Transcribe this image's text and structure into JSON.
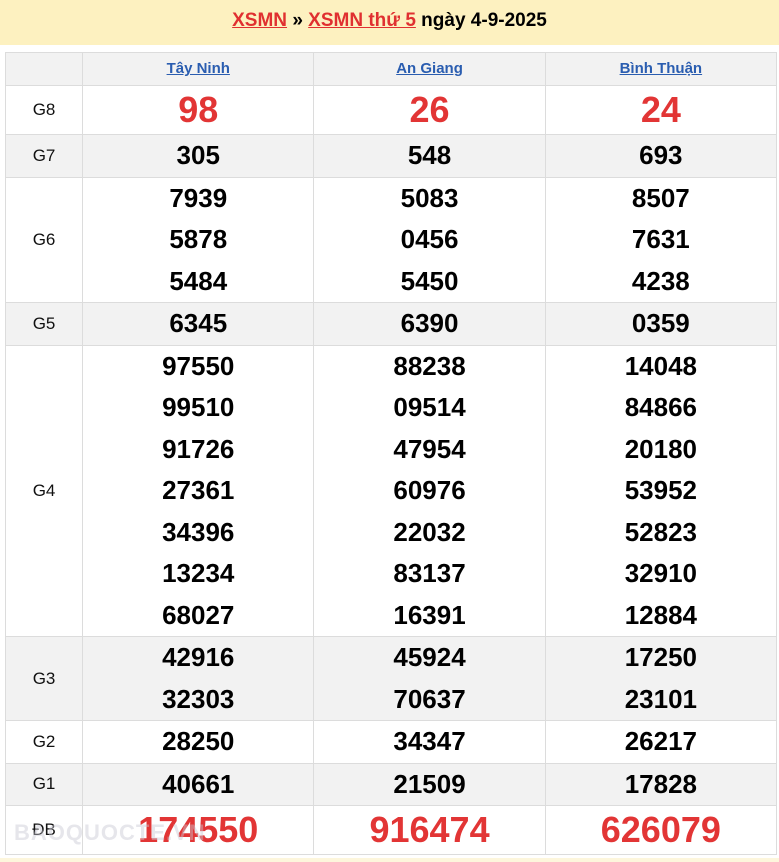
{
  "header": {
    "link1": "XSMN",
    "sep": "»",
    "link2": "XSMN thứ 5",
    "date": "ngày 4-9-2025"
  },
  "provinces": [
    "Tây Ninh",
    "An Giang",
    "Bình Thuận"
  ],
  "rows": [
    {
      "label": "G8",
      "values": [
        [
          "98"
        ],
        [
          "26"
        ],
        [
          "24"
        ]
      ],
      "red": true,
      "gray": false
    },
    {
      "label": "G7",
      "values": [
        [
          "305"
        ],
        [
          "548"
        ],
        [
          "693"
        ]
      ],
      "gray": true
    },
    {
      "label": "G6",
      "values": [
        [
          "7939",
          "5878",
          "5484"
        ],
        [
          "5083",
          "0456",
          "5450"
        ],
        [
          "8507",
          "7631",
          "4238"
        ]
      ],
      "gray": false
    },
    {
      "label": "G5",
      "values": [
        [
          "6345"
        ],
        [
          "6390"
        ],
        [
          "0359"
        ]
      ],
      "gray": true
    },
    {
      "label": "G4",
      "values": [
        [
          "97550",
          "99510",
          "91726",
          "27361",
          "34396",
          "13234",
          "68027"
        ],
        [
          "88238",
          "09514",
          "47954",
          "60976",
          "22032",
          "83137",
          "16391"
        ],
        [
          "14048",
          "84866",
          "20180",
          "53952",
          "52823",
          "32910",
          "12884"
        ]
      ],
      "gray": false
    },
    {
      "label": "G3",
      "values": [
        [
          "42916",
          "32303"
        ],
        [
          "45924",
          "70637"
        ],
        [
          "17250",
          "23101"
        ]
      ],
      "gray": true
    },
    {
      "label": "G2",
      "values": [
        [
          "28250"
        ],
        [
          "34347"
        ],
        [
          "26217"
        ]
      ],
      "gray": false
    },
    {
      "label": "G1",
      "values": [
        [
          "40661"
        ],
        [
          "21509"
        ],
        [
          "17828"
        ]
      ],
      "gray": true
    },
    {
      "label": "ĐB",
      "values": [
        [
          "174550"
        ],
        [
          "916474"
        ],
        [
          "626079"
        ]
      ],
      "red": true,
      "gray": false
    }
  ],
  "watermark": "BAOQUOCTE.VN",
  "colors": {
    "accent_red": "#e23535",
    "link_blue": "#2a5db0",
    "banner": "#fdf1c0"
  }
}
